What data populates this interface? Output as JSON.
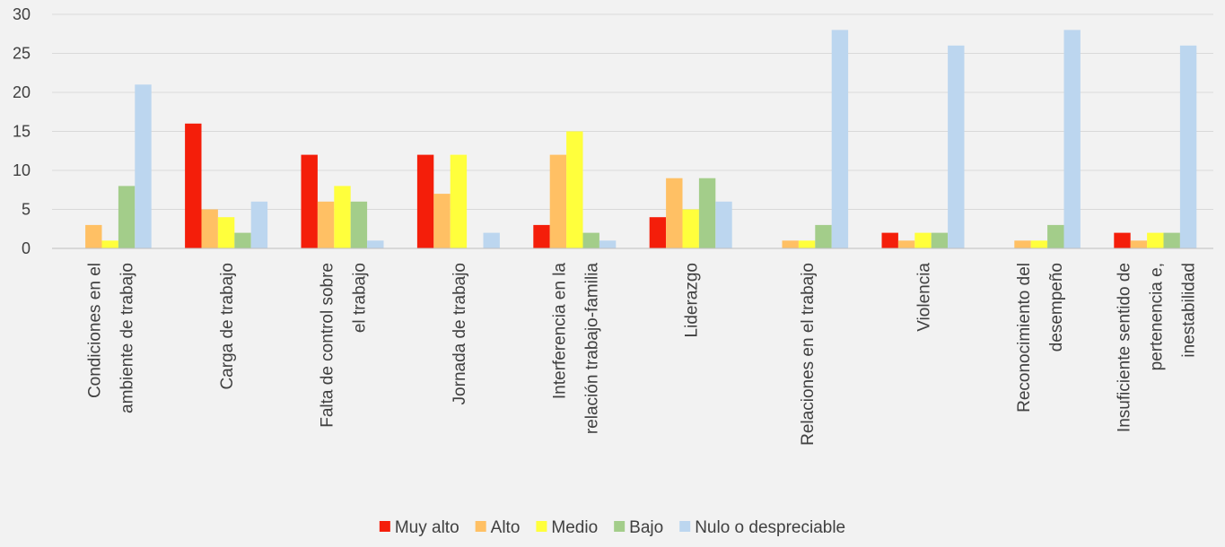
{
  "chart_data": {
    "type": "bar",
    "title": "",
    "xlabel": "",
    "ylabel": "",
    "ylim": [
      0,
      30
    ],
    "yticks": [
      0,
      5,
      10,
      15,
      20,
      25,
      30
    ],
    "grid": true,
    "legend_position": "bottom",
    "categories": [
      [
        "Condiciones en el",
        "ambiente de trabajo"
      ],
      [
        "Carga de trabajo"
      ],
      [
        "Falta de control sobre",
        "el trabajo"
      ],
      [
        "Jornada de trabajo"
      ],
      [
        "Interferencia en la",
        "relación trabajo-familia"
      ],
      [
        "Liderazgo"
      ],
      [
        "Relaciones en el trabajo"
      ],
      [
        "Violencia"
      ],
      [
        "Reconocimiento del",
        "desempeño"
      ],
      [
        "Insuficiente sentido de",
        "pertenencia e,",
        "inestabilidad"
      ]
    ],
    "series": [
      {
        "name": "Muy alto",
        "color": "#f41e0a",
        "values": [
          0,
          16,
          12,
          12,
          3,
          4,
          0,
          2,
          0,
          2
        ]
      },
      {
        "name": "Alto",
        "color": "#ffc064",
        "values": [
          3,
          5,
          6,
          7,
          12,
          9,
          1,
          1,
          1,
          1
        ]
      },
      {
        "name": "Medio",
        "color": "#ffff3c",
        "values": [
          1,
          4,
          8,
          12,
          15,
          5,
          1,
          2,
          1,
          2
        ]
      },
      {
        "name": "Bajo",
        "color": "#a3cd8a",
        "values": [
          8,
          2,
          6,
          0,
          2,
          9,
          3,
          2,
          3,
          2
        ]
      },
      {
        "name": "Nulo o despreciable",
        "color": "#bcd6ef",
        "values": [
          21,
          6,
          1,
          2,
          1,
          6,
          28,
          26,
          28,
          26
        ]
      }
    ]
  }
}
